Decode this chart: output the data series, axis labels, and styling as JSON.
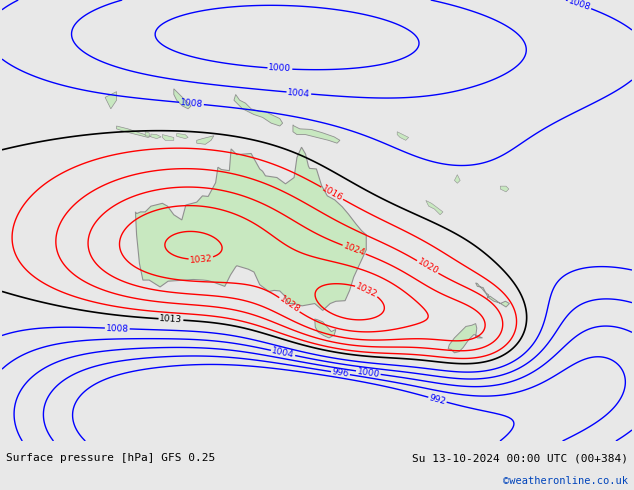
{
  "title_left": "Surface pressure [hPa] GFS 0.25",
  "title_right": "Su 13-10-2024 00:00 UTC (00+384)",
  "watermark": "©weatheronline.co.uk",
  "background_color": "#e8e8e8",
  "land_color": "#c8e8c0",
  "border_color": "#909090",
  "fig_width": 6.34,
  "fig_height": 4.9,
  "dpi": 100,
  "lon_min": 90,
  "lon_max": 200,
  "lat_min": -62,
  "lat_max": 15
}
